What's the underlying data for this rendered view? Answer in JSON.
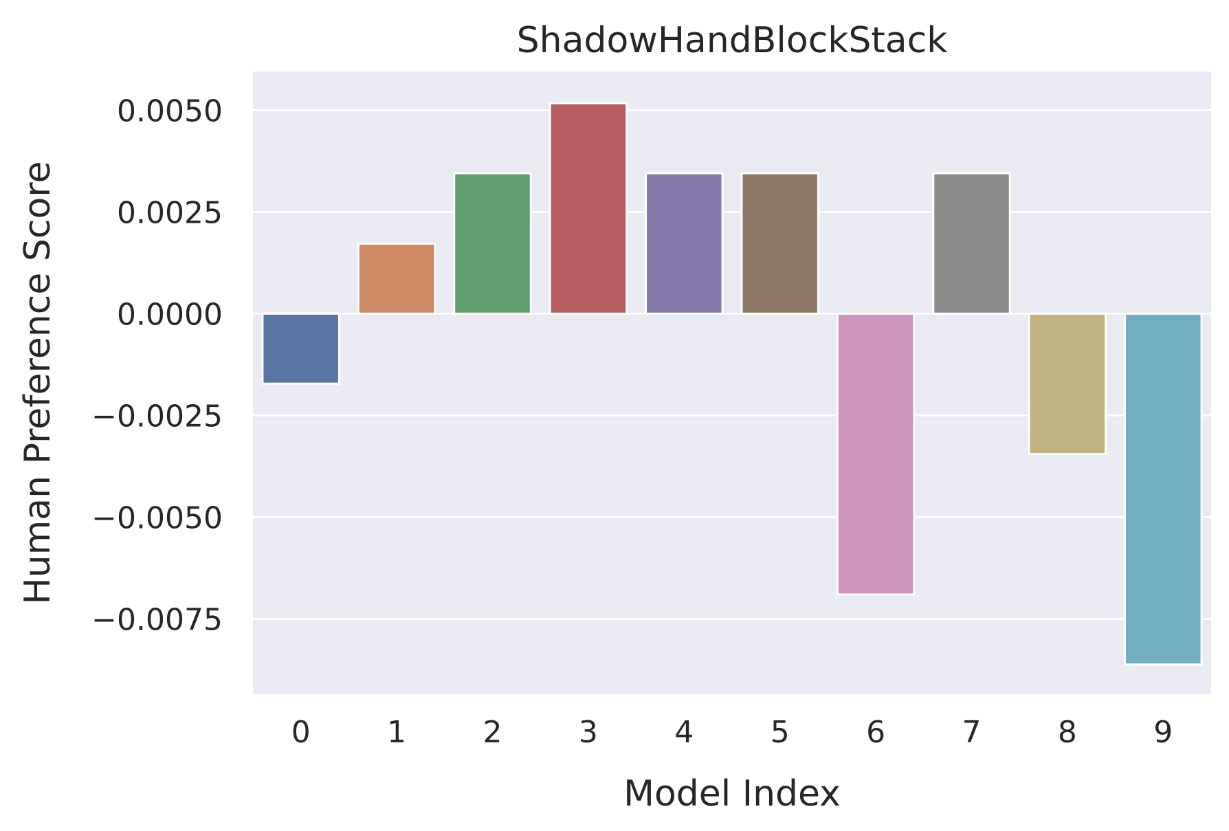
{
  "chart_data": {
    "type": "bar",
    "title": "ShadowHandBlockStack",
    "xlabel": "Model Index",
    "ylabel": "Human Preference Score",
    "categories": [
      "0",
      "1",
      "2",
      "3",
      "4",
      "5",
      "6",
      "7",
      "8",
      "9"
    ],
    "values": [
      -0.00172,
      0.00172,
      0.00345,
      0.00517,
      0.00345,
      0.00345,
      -0.0069,
      0.00345,
      -0.00345,
      -0.00862
    ],
    "colors": [
      "#5875a4",
      "#cc8963",
      "#5f9e6e",
      "#b55d60",
      "#857aab",
      "#8d7866",
      "#d095bf",
      "#8c8c8c",
      "#c1b37f",
      "#71aec0"
    ],
    "ylim": [
      -0.00935,
      0.00595
    ],
    "yticks": [
      0.005,
      0.0025,
      0.0,
      -0.0025,
      -0.005,
      -0.0075
    ],
    "ytick_labels": [
      "0.0050",
      "0.0025",
      "0.0000",
      "−0.0025",
      "−0.0050",
      "−0.0075"
    ],
    "grid": true,
    "background": "#eaeaf2"
  }
}
